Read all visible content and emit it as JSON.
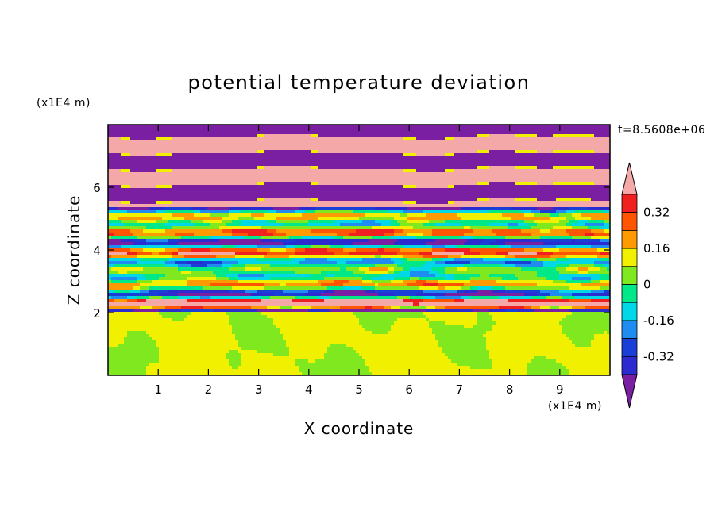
{
  "chart_data": {
    "type": "heatmap",
    "title": "potential temperature deviation",
    "xlabel": "X coordinate",
    "ylabel": "Z coordinate",
    "x_unit": "(x1E4 m)",
    "y_unit": "(x1E4 m)",
    "time_label": "t=8.5608e+06",
    "xlim": [
      0,
      10
    ],
    "ylim": [
      0,
      8
    ],
    "x_ticks": [
      1,
      2,
      3,
      4,
      5,
      6,
      7,
      8,
      9
    ],
    "y_ticks": [
      2,
      4,
      6
    ],
    "x_tick_labels": [
      "1",
      "2",
      "3",
      "4",
      "5",
      "6",
      "7",
      "8",
      "9"
    ],
    "y_tick_labels": [
      "2",
      "4",
      "6"
    ],
    "colorbar": {
      "levels": [
        -0.4,
        -0.32,
        -0.24,
        -0.16,
        -0.08,
        0,
        0.08,
        0.16,
        0.24,
        0.32,
        0.4
      ],
      "colors": [
        "#7a1fa2",
        "#2b2bcf",
        "#1a3fd6",
        "#1e8cf0",
        "#00d8e8",
        "#00e887",
        "#7fe81f",
        "#f0f000",
        "#ff9a00",
        "#ff5500",
        "#f02020",
        "#f5a8a8"
      ],
      "tick_labels": [
        "0.32",
        "0.16",
        "0",
        "-0.16",
        "-0.32"
      ],
      "tick_values": [
        0.32,
        0.16,
        0,
        -0.16,
        -0.32
      ],
      "extend": "both"
    },
    "regions": [
      {
        "z_range": [
          0,
          2
        ],
        "description_values": [
          0,
          0.08
        ]
      },
      {
        "z_range": [
          2,
          5.5
        ],
        "description_values": [
          -0.4,
          0.4
        ]
      },
      {
        "z_range": [
          5.5,
          8
        ],
        "description_values": [
          -0.4,
          0.4
        ]
      }
    ]
  }
}
